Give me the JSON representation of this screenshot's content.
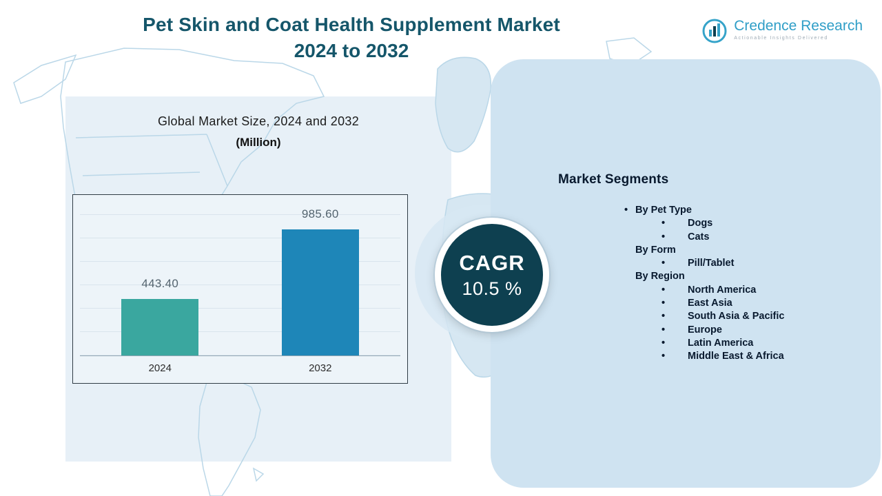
{
  "header": {
    "title_line1": "Pet Skin and Coat Health Supplement Market",
    "title_line2": "2024 to 2032"
  },
  "logo": {
    "name": "Credence Research",
    "tagline": "Actionable Insights Delivered"
  },
  "chart_data": {
    "type": "bar",
    "title": "Global Market Size, 2024 and 2032",
    "subtitle": "(Million)",
    "categories": [
      "2024",
      "2032"
    ],
    "values": [
      443.4,
      985.6
    ],
    "value_labels": [
      "443.40",
      "985.60"
    ],
    "bar_colors": [
      "#3aa79f",
      "#1e86b8"
    ],
    "ylim": [
      0,
      1100
    ],
    "grid": true,
    "legend": "none"
  },
  "cagr": {
    "label": "CAGR",
    "value": "10.5 %"
  },
  "segments": {
    "heading": "Market Segments",
    "items": [
      {
        "label": "By Pet Type",
        "level": 1,
        "bullet": true
      },
      {
        "label": "Dogs",
        "level": 2,
        "bullet": true
      },
      {
        "label": "Cats",
        "level": 2,
        "bullet": true
      },
      {
        "label": "By Form",
        "level": 1,
        "bullet": false
      },
      {
        "label": "Pill/Tablet",
        "level": 2,
        "bullet": true
      },
      {
        "label": "By Region",
        "level": 1,
        "bullet": false
      },
      {
        "label": "North America",
        "level": 2,
        "bullet": true
      },
      {
        "label": "East Asia",
        "level": 2,
        "bullet": true
      },
      {
        "label": "South Asia & Pacific",
        "level": 2,
        "bullet": true
      },
      {
        "label": "Europe",
        "level": 2,
        "bullet": true
      },
      {
        "label": "Latin America",
        "level": 2,
        "bullet": true
      },
      {
        "label": "Middle East & Africa",
        "level": 2,
        "bullet": true
      }
    ]
  },
  "colors": {
    "bar_2024": "#3aa79f",
    "bar_2032": "#1e86b8",
    "badge_bg": "#0e4050",
    "panel_bg": "#cfe3f1",
    "title_text": "#15566a",
    "map_stroke": "#bad7e8"
  }
}
